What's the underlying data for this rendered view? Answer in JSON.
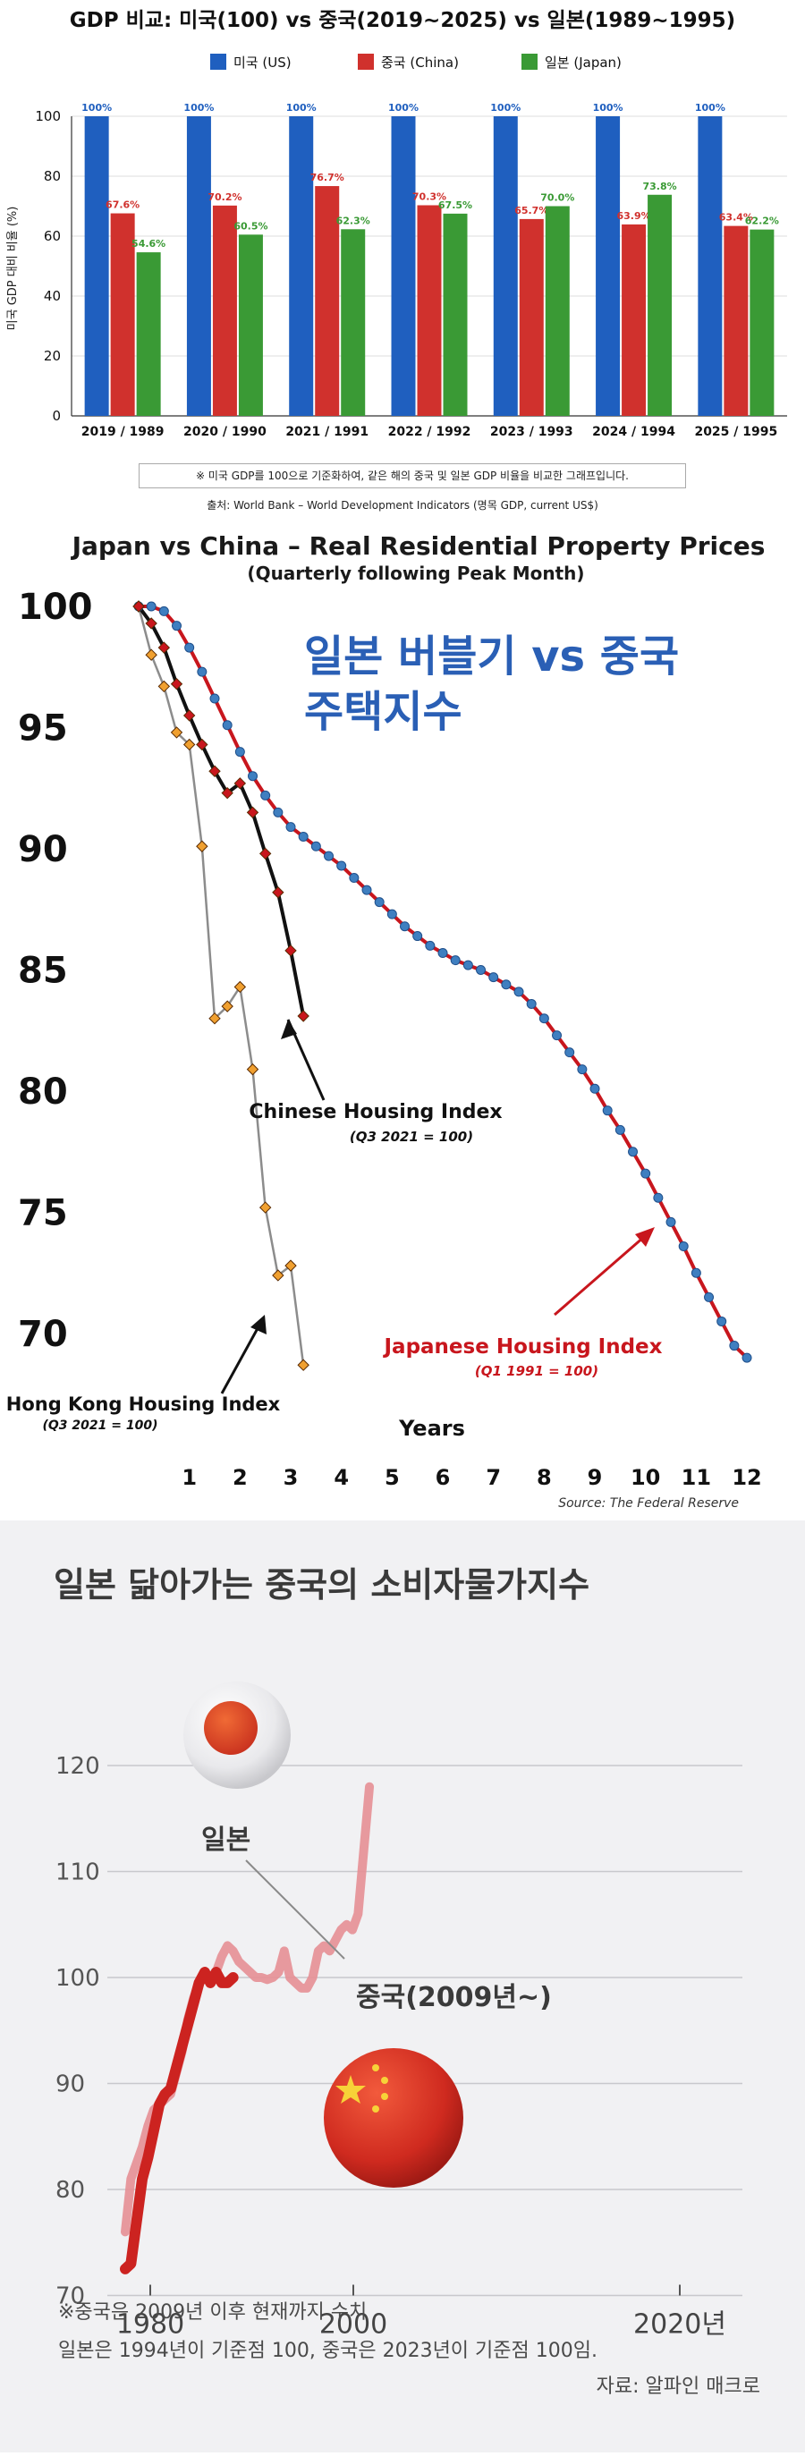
{
  "chart_data": [
    {
      "type": "bar",
      "title": "GDP 비교: 미국(100) vs 중국(2019~2025) vs 일본(1989~1995)",
      "ylabel": "미국 GDP 대비 비율 (%)",
      "xlabel": "",
      "ylim": [
        0,
        100
      ],
      "yticks": [
        0,
        20,
        40,
        60,
        80,
        100
      ],
      "grid": true,
      "legend_position": "top",
      "categories": [
        "2019 / 1989",
        "2020 / 1990",
        "2021 / 1991",
        "2022 / 1992",
        "2023 / 1993",
        "2024 / 1994",
        "2025 / 1995"
      ],
      "series": [
        {
          "name": "미국 (US)",
          "color": "#1f5fbf",
          "values": [
            100,
            100,
            100,
            100,
            100,
            100,
            100
          ],
          "labels": [
            "100%",
            "100%",
            "100%",
            "100%",
            "100%",
            "100%",
            "100%"
          ]
        },
        {
          "name": "중국 (China)",
          "color": "#d0312d",
          "values": [
            67.6,
            70.2,
            76.7,
            70.3,
            65.7,
            63.9,
            63.4
          ],
          "labels": [
            "67.6%",
            "70.2%",
            "76.7%",
            "70.3%",
            "65.7%",
            "63.9%",
            "63.4%"
          ]
        },
        {
          "name": "일본 (Japan)",
          "color": "#3a9a35",
          "values": [
            54.6,
            60.5,
            62.3,
            67.5,
            70.0,
            73.8,
            62.2
          ],
          "labels": [
            "54.6%",
            "60.5%",
            "62.3%",
            "67.5%",
            "70.0%",
            "73.8%",
            "62.2%"
          ]
        }
      ],
      "note": "※ 미국 GDP를 100으로 기준화하여, 같은 해의 중국 및 일본 GDP 비율을 비교한 그래프입니다.",
      "source": "출처: World Bank – World Development Indicators (명목 GDP, current US$)"
    },
    {
      "type": "line",
      "title": "Japan vs China – Real Residential Property Prices",
      "subtitle": "(Quarterly following Peak Month)",
      "overlay_text": [
        "일본 버블기 vs 중국",
        "주택지수"
      ],
      "xlabel": "Years",
      "xlim": [
        0,
        12
      ],
      "xticks": [
        "1",
        "2",
        "3",
        "4",
        "5",
        "6",
        "7",
        "8",
        "9",
        "10",
        "11",
        "12"
      ],
      "ylim": [
        68,
        101
      ],
      "yticks": [
        "100",
        "95",
        "90",
        "85",
        "80",
        "75",
        "70"
      ],
      "source": "Source: The Federal Reserve",
      "series": [
        {
          "name": "Japanese Housing Index",
          "note": "(Q1 1991 = 100)",
          "color": "#c8161d",
          "marker_color": "#3f7fc0",
          "x": [
            0,
            0.25,
            0.5,
            0.75,
            1,
            1.25,
            1.5,
            1.75,
            2,
            2.25,
            2.5,
            2.75,
            3,
            3.25,
            3.5,
            3.75,
            4,
            4.25,
            4.5,
            4.75,
            5,
            5.25,
            5.5,
            5.75,
            6,
            6.25,
            6.5,
            6.75,
            7,
            7.25,
            7.5,
            7.75,
            8,
            8.25,
            8.5,
            8.75,
            9,
            9.25,
            9.5,
            9.75,
            10,
            10.25,
            10.5,
            10.75,
            11,
            11.25,
            11.5,
            11.75,
            12
          ],
          "y": [
            100,
            100,
            99.8,
            99.2,
            98.3,
            97.3,
            96.2,
            95.1,
            94,
            93,
            92.2,
            91.5,
            90.9,
            90.5,
            90.1,
            89.7,
            89.3,
            88.8,
            88.3,
            87.8,
            87.3,
            86.8,
            86.4,
            86,
            85.7,
            85.4,
            85.2,
            85,
            84.7,
            84.4,
            84.1,
            83.6,
            83,
            82.3,
            81.6,
            80.9,
            80.1,
            79.2,
            78.4,
            77.5,
            76.6,
            75.6,
            74.6,
            73.6,
            72.5,
            71.5,
            70.5,
            69.5,
            69
          ]
        },
        {
          "name": "Chinese Housing Index",
          "note": "(Q3 2021 = 100)",
          "color": "#111111",
          "marker_color": "#c8161d",
          "x": [
            0,
            0.25,
            0.5,
            0.75,
            1,
            1.25,
            1.5,
            1.75,
            2,
            2.25,
            2.5,
            2.75,
            3,
            3.25
          ],
          "y": [
            100,
            99.3,
            98.3,
            96.8,
            95.5,
            94.3,
            93.2,
            92.3,
            92.7,
            91.5,
            89.8,
            88.2,
            85.8,
            83.1
          ]
        },
        {
          "name": "Hong Kong Housing Index",
          "note": "(Q3 2021 = 100)",
          "color": "#8c8c8c",
          "marker_color": "#f0a030",
          "x": [
            0,
            0.25,
            0.5,
            0.75,
            1,
            1.25,
            1.5,
            1.75,
            2,
            2.25,
            2.5,
            2.75,
            3,
            3.25
          ],
          "y": [
            100,
            98,
            96.7,
            94.8,
            94.3,
            90.1,
            83,
            83.5,
            84.3,
            80.9,
            75.2,
            72.4,
            72.8,
            68.7
          ]
        }
      ]
    },
    {
      "type": "line",
      "title": "일본 닮아가는 중국의 소비자물가지수",
      "ylim": [
        70,
        120
      ],
      "yticks": [
        "70",
        "80",
        "90",
        "100",
        "110",
        "120"
      ],
      "xticks": [
        "1980",
        "2000",
        "2020년"
      ],
      "series": [
        {
          "name": "일본",
          "color": "#e58f95",
          "x": [
            1980,
            1981,
            1982,
            1983,
            1984,
            1985,
            1986,
            1987,
            1988,
            1989,
            1990,
            1991,
            1992,
            1993,
            1994,
            1995,
            1996,
            1997,
            1998,
            1999,
            2000,
            2001,
            2002,
            2003,
            2004,
            2005,
            2006,
            2007,
            2008,
            2009,
            2010,
            2011,
            2012,
            2013,
            2014,
            2015,
            2016,
            2017,
            2018,
            2019,
            2020,
            2021,
            2022,
            2023
          ],
          "y": [
            76,
            81,
            82.5,
            84,
            86,
            87.5,
            88,
            88.5,
            89,
            91,
            93,
            96,
            98,
            99.5,
            100,
            100,
            100.5,
            102,
            103,
            102.5,
            101.5,
            101,
            100.5,
            100,
            100,
            99.8,
            100,
            100.5,
            102.5,
            100,
            99.5,
            99,
            99,
            100,
            102.5,
            103,
            102.5,
            103.5,
            104.5,
            105,
            104.5,
            106,
            112,
            118
          ]
        },
        {
          "name": "중국(2009년~)",
          "color": "#cc2320",
          "x": [
            1980,
            1981,
            1982,
            1983,
            1984,
            1985,
            1986,
            1987,
            1988,
            1989,
            1990,
            1991,
            1992,
            1993,
            1994,
            1995,
            1996,
            1997,
            1998,
            1999
          ],
          "y": [
            72.5,
            73,
            77,
            81,
            83,
            85.5,
            88,
            89,
            89.5,
            91.5,
            93.5,
            95.5,
            97.5,
            99.5,
            100.5,
            99.5,
            100.5,
            99.5,
            99.5,
            100
          ]
        }
      ],
      "footnote": "※중국은 2009년 이후 현재까지 수치",
      "footnote2": "일본은 1994년이 기준점 100, 중국은 2023년이 기준점 100임.",
      "source": "자료: 알파인 매크로"
    }
  ]
}
